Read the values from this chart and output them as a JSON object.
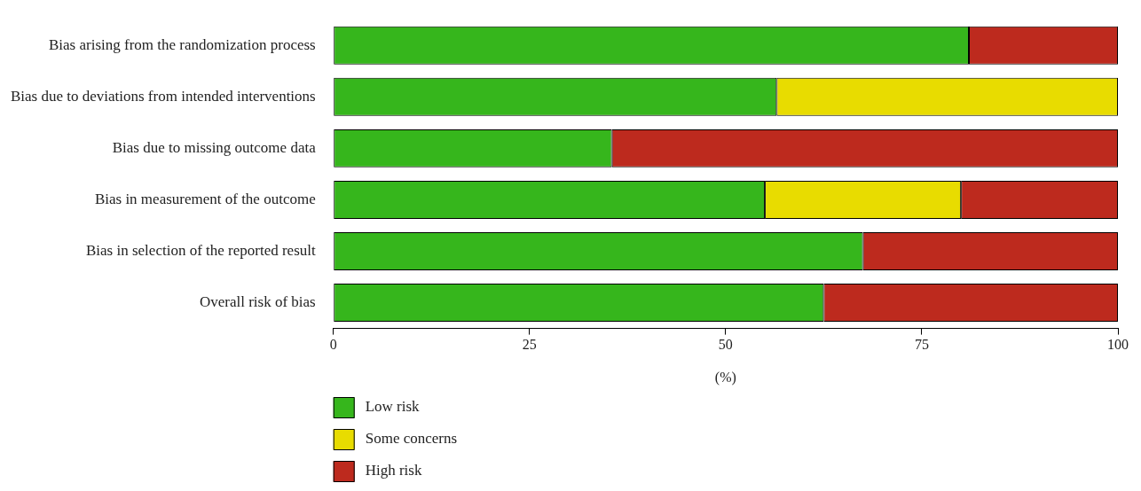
{
  "chart_data": {
    "type": "bar",
    "orientation": "horizontal",
    "stacked": true,
    "xlabel": "(%)",
    "categories": [
      "Bias arising from the randomization process",
      "Bias due to deviations from intended interventions",
      "Bias due to missing outcome data",
      "Bias in measurement of the outcome",
      "Bias in selection of the reported result",
      "Overall risk of bias"
    ],
    "series": [
      {
        "name": "Low risk",
        "color": "#36b61c",
        "values": [
          81,
          56.5,
          35.5,
          55,
          67.5,
          62.5
        ]
      },
      {
        "name": "Some concerns",
        "color": "#e8dc00",
        "values": [
          0,
          43.5,
          0,
          25,
          0,
          0
        ]
      },
      {
        "name": "High risk",
        "color": "#bd2a1e",
        "values": [
          19,
          0,
          64.5,
          20,
          32.5,
          37.5
        ]
      }
    ],
    "xlim": [
      0,
      100
    ],
    "xticks": [
      0,
      25,
      50,
      75,
      100
    ],
    "grid": false,
    "legend": "bottom left"
  }
}
